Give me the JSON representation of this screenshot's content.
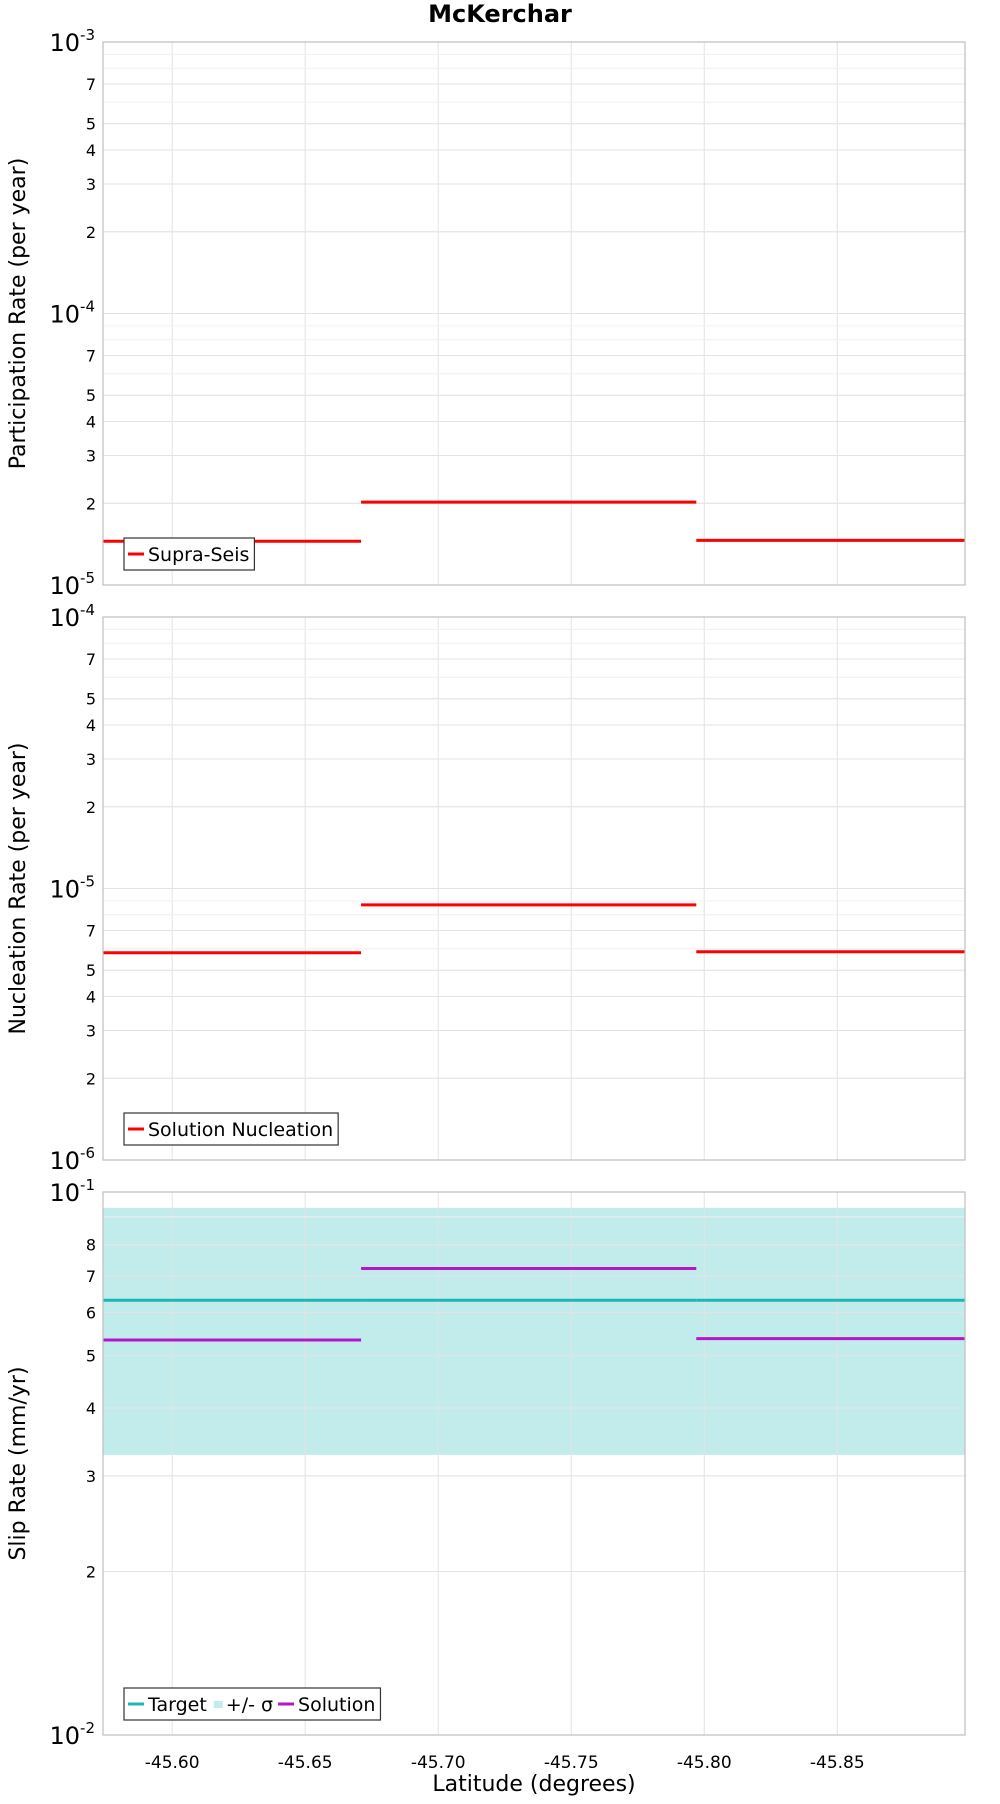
{
  "chart_data": {
    "title": "McKerchar",
    "xlabel": "Latitude (degrees)",
    "x_range": [
      -45.574,
      -45.898
    ],
    "x_ticks": [
      -45.6,
      -45.65,
      -45.7,
      -45.75,
      -45.8,
      -45.85
    ],
    "x_tick_labels": [
      "-45.60",
      "-45.65",
      "-45.70",
      "-45.75",
      "-45.80",
      "-45.85"
    ],
    "segment_boundaries": [
      -45.574,
      -45.671,
      -45.797,
      -45.898
    ],
    "panels": [
      {
        "type": "line",
        "scale": "log",
        "ylabel": "Participation Rate (per year)",
        "ylim": [
          1e-05,
          0.001
        ],
        "major_ticks": [
          {
            "value": 1e-05,
            "mantissa": "10",
            "exponent": "-5"
          },
          {
            "value": 0.0001,
            "mantissa": "10",
            "exponent": "-4"
          },
          {
            "value": 0.001,
            "mantissa": "10",
            "exponent": "-3"
          }
        ],
        "minor_ticks": [
          {
            "value": 2e-05,
            "label": "2"
          },
          {
            "value": 3e-05,
            "label": "3"
          },
          {
            "value": 4e-05,
            "label": "4"
          },
          {
            "value": 5e-05,
            "label": "5"
          },
          {
            "value": 7e-05,
            "label": "7"
          },
          {
            "value": 0.0002,
            "label": "2"
          },
          {
            "value": 0.0003,
            "label": "3"
          },
          {
            "value": 0.0004,
            "label": "4"
          },
          {
            "value": 0.0005,
            "label": "5"
          },
          {
            "value": 0.0007,
            "label": "7"
          }
        ],
        "series": [
          {
            "name": "Supra-Seis",
            "color": "#ff0000",
            "values": [
              1.45e-05,
              2.02e-05,
              1.46e-05
            ]
          }
        ],
        "legend": [
          {
            "label": "Supra-Seis",
            "color": "#ff0000",
            "kind": "line"
          }
        ]
      },
      {
        "type": "line",
        "scale": "log",
        "ylabel": "Nucleation Rate (per year)",
        "ylim": [
          1e-06,
          0.0001
        ],
        "major_ticks": [
          {
            "value": 1e-06,
            "mantissa": "10",
            "exponent": "-6"
          },
          {
            "value": 1e-05,
            "mantissa": "10",
            "exponent": "-5"
          },
          {
            "value": 0.0001,
            "mantissa": "10",
            "exponent": "-4"
          }
        ],
        "minor_ticks": [
          {
            "value": 2e-06,
            "label": "2"
          },
          {
            "value": 3e-06,
            "label": "3"
          },
          {
            "value": 4e-06,
            "label": "4"
          },
          {
            "value": 5e-06,
            "label": "5"
          },
          {
            "value": 7e-06,
            "label": "7"
          },
          {
            "value": 2e-05,
            "label": "2"
          },
          {
            "value": 3e-05,
            "label": "3"
          },
          {
            "value": 4e-05,
            "label": "4"
          },
          {
            "value": 5e-05,
            "label": "5"
          },
          {
            "value": 7e-05,
            "label": "7"
          }
        ],
        "series": [
          {
            "name": "Solution Nucleation",
            "color": "#ff0000",
            "values": [
              5.8e-06,
              8.7e-06,
              5.85e-06
            ]
          }
        ],
        "legend": [
          {
            "label": "Solution Nucleation",
            "color": "#ff0000",
            "kind": "line"
          }
        ]
      },
      {
        "type": "line",
        "scale": "log",
        "ylabel": "Slip Rate (mm/yr)",
        "ylim": [
          0.01,
          0.1
        ],
        "major_ticks": [
          {
            "value": 0.01,
            "mantissa": "10",
            "exponent": "-2"
          },
          {
            "value": 0.1,
            "mantissa": "10",
            "exponent": "-1"
          }
        ],
        "minor_ticks": [
          {
            "value": 0.02,
            "label": "2"
          },
          {
            "value": 0.03,
            "label": "3"
          },
          {
            "value": 0.04,
            "label": "4"
          },
          {
            "value": 0.05,
            "label": "5"
          },
          {
            "value": 0.06,
            "label": "6"
          },
          {
            "value": 0.07,
            "label": "7"
          },
          {
            "value": 0.08,
            "label": "8"
          }
        ],
        "band": {
          "name": "+/- σ",
          "color": "#c2ecec",
          "low": 0.0328,
          "high": 0.0935
        },
        "series": [
          {
            "name": "Target",
            "color": "#1fb5b5",
            "values": [
              0.0632,
              0.0632,
              0.0632
            ]
          },
          {
            "name": "Solution",
            "color": "#b416c8",
            "values": [
              0.0534,
              0.0723,
              0.0537
            ]
          }
        ],
        "legend": [
          {
            "label": "Target",
            "color": "#1fb5b5",
            "kind": "line"
          },
          {
            "label": "+/- σ",
            "color": "#c2ecec",
            "kind": "band"
          },
          {
            "label": "Solution",
            "color": "#b416c8",
            "kind": "line"
          }
        ]
      }
    ]
  }
}
